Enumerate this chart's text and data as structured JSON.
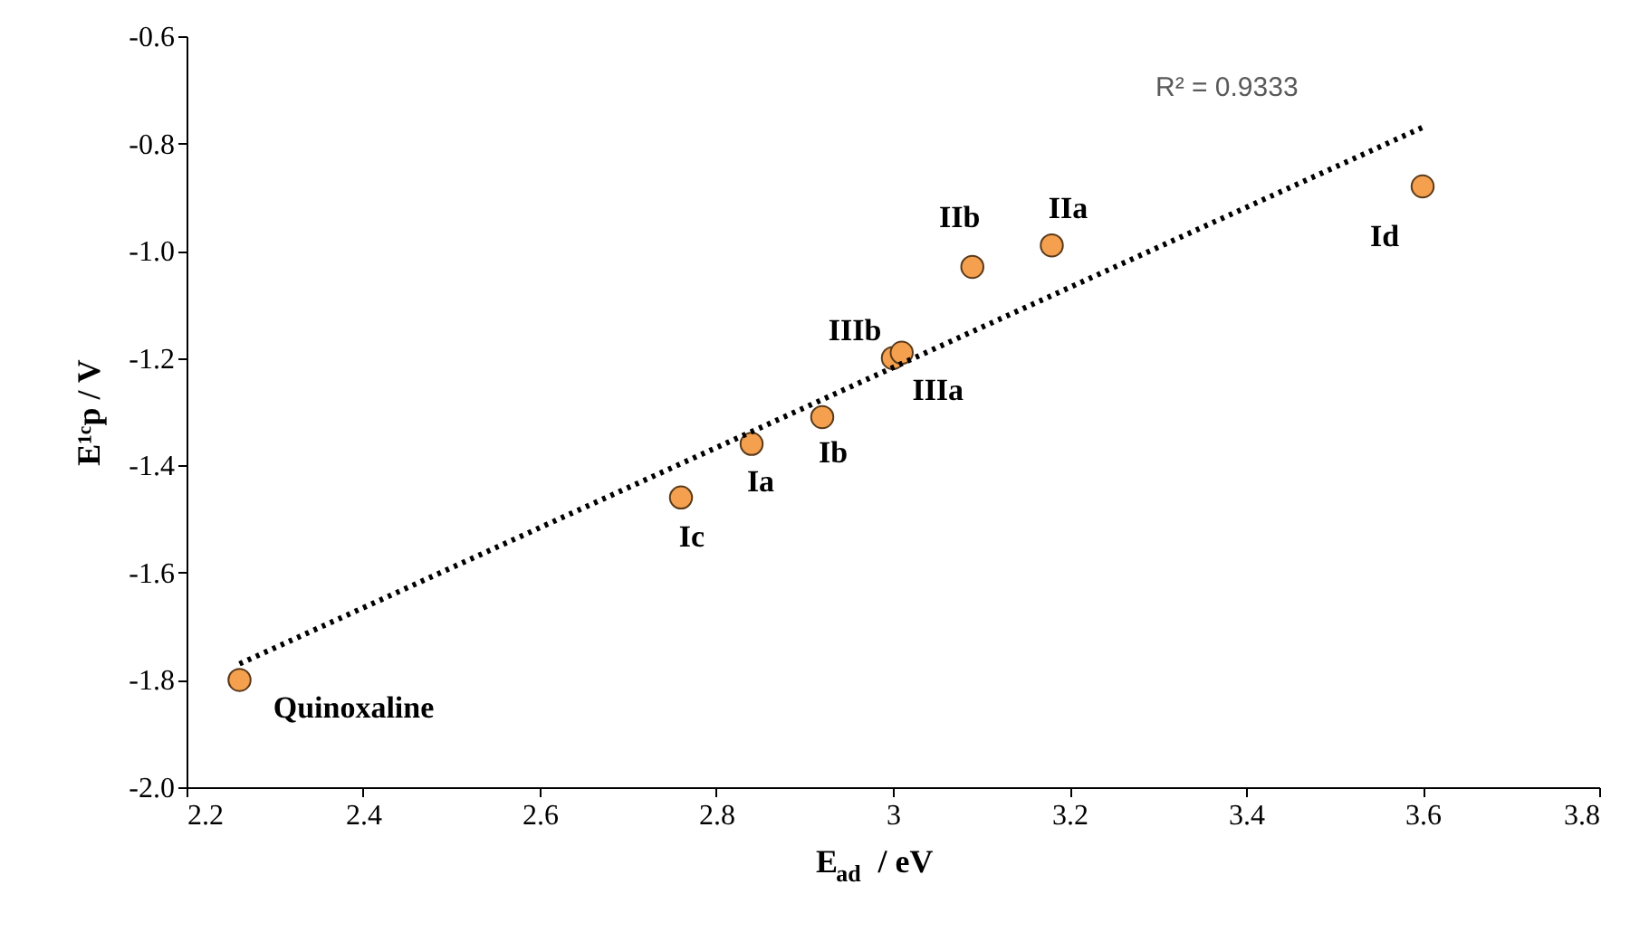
{
  "chart_data": {
    "type": "scatter",
    "xlabel": "E$_{ad}$ / eV",
    "ylabel": "E¹ᶜp / V",
    "series": [
      {
        "marker": "circle",
        "color": "#f4a04e",
        "x": [
          2.26,
          2.76,
          2.84,
          2.92,
          3.0,
          3.01,
          3.09,
          3.18,
          3.6
        ],
        "values": [
          -1.8,
          -1.46,
          -1.36,
          -1.31,
          -1.2,
          -1.19,
          -1.03,
          -0.99,
          -0.88
        ]
      },
      {
        "type": "line",
        "color": "#000000",
        "line_style": "dotted",
        "x": [
          2.26,
          3.6
        ],
        "values": [
          -1.77,
          -0.77
        ]
      }
    ],
    "xlim": [
      2.2,
      3.8
    ],
    "xticks": [
      2.2,
      2.4,
      2.6,
      2.8,
      3,
      3.2,
      3.4,
      3.6,
      3.8
    ],
    "ylim": [
      -2.0,
      -0.6
    ],
    "yticks": [
      {
        "value": -2.0,
        "label": "-2.0"
      },
      -1.8,
      -1.6,
      -1.4,
      -1.2,
      {
        "value": -1.0,
        "label": "-1.0"
      },
      -0.8,
      -0.6
    ],
    "grid": false,
    "annotations": [
      {
        "text": "Quinoxaline",
        "x": 2.26,
        "y": -1.8
      },
      {
        "text": "Ic",
        "x": 2.76,
        "y": -1.46
      },
      {
        "text": "Ia",
        "x": 2.84,
        "y": -1.36
      },
      {
        "text": "Ib",
        "x": 2.92,
        "y": -1.31
      },
      {
        "text": "IIIb",
        "x": 3.0,
        "y": -1.2
      },
      {
        "text": "IIIa",
        "x": 3.01,
        "y": -1.19
      },
      {
        "text": "IIb",
        "x": 3.09,
        "y": -1.03
      },
      {
        "text": "IIa",
        "x": 3.18,
        "y": -0.99
      },
      {
        "text": "Id",
        "x": 3.6,
        "y": -0.88
      },
      "R² = 0.9333"
    ]
  }
}
